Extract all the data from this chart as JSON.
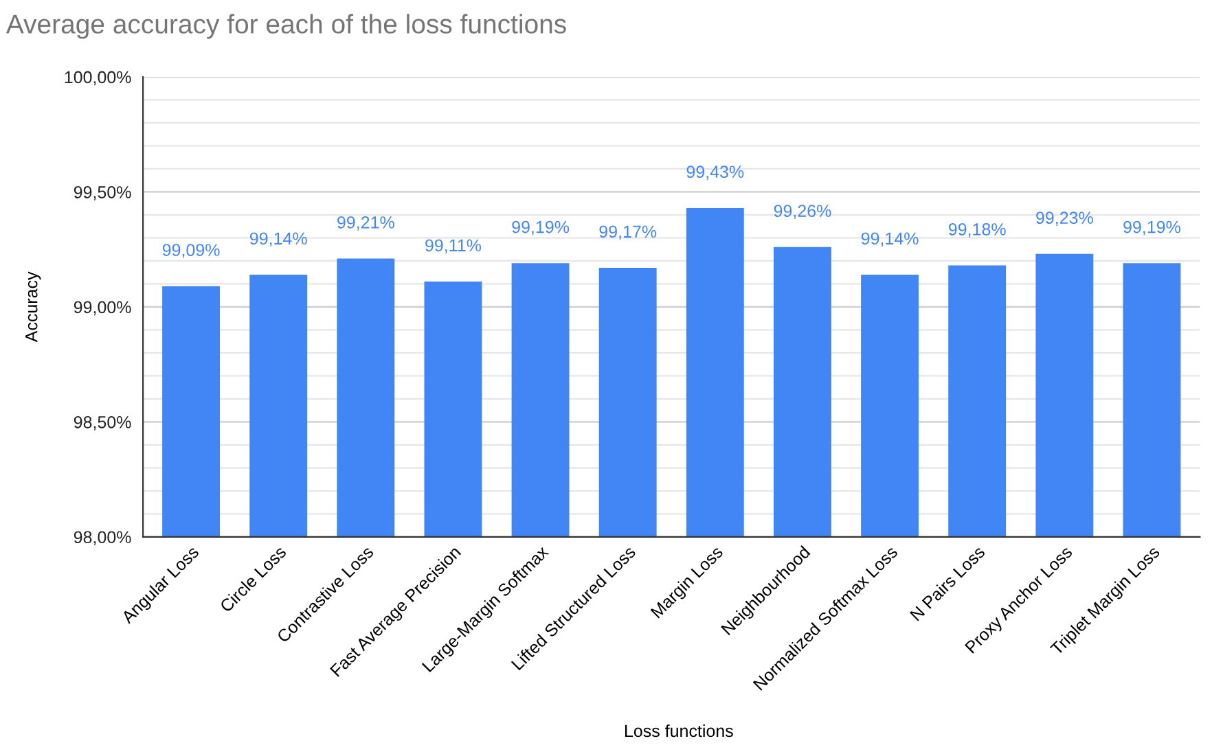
{
  "chart_data": {
    "type": "bar",
    "title": "Average accuracy for each of the loss functions",
    "xlabel": "Loss functions",
    "ylabel": "Accuracy",
    "categories": [
      "Angular Loss",
      "Circle Loss",
      "Contrastive Loss",
      "Fast Average Precision",
      "Large-Margin Softmax",
      "Lifted Structured Loss",
      "Margin Loss",
      "Neighbourhood",
      "Normalized Softmax Loss",
      "N Pairs Loss",
      "Proxy Anchor Loss",
      "Triplet Margin Loss"
    ],
    "values": [
      99.09,
      99.14,
      99.21,
      99.11,
      99.19,
      99.17,
      99.43,
      99.26,
      99.14,
      99.18,
      99.23,
      99.19
    ],
    "value_labels": [
      "99,09%",
      "99,14%",
      "99,21%",
      "99,11%",
      "99,19%",
      "99,17%",
      "99,43%",
      "99,26%",
      "99,14%",
      "99,18%",
      "99,23%",
      "99,19%"
    ],
    "color": "#4285f4",
    "ylim": [
      98.0,
      100.0
    ],
    "yticks": [
      {
        "value": 98.0,
        "label": "98,00%"
      },
      {
        "value": 98.1,
        "label": null
      },
      {
        "value": 98.2,
        "label": null
      },
      {
        "value": 98.3,
        "label": null
      },
      {
        "value": 98.4,
        "label": null
      },
      {
        "value": 98.5,
        "label": "98,50%"
      },
      {
        "value": 98.6,
        "label": null
      },
      {
        "value": 98.7,
        "label": null
      },
      {
        "value": 98.8,
        "label": null
      },
      {
        "value": 98.9,
        "label": null
      },
      {
        "value": 99.0,
        "label": "99,00%"
      },
      {
        "value": 99.1,
        "label": null
      },
      {
        "value": 99.2,
        "label": null
      },
      {
        "value": 99.3,
        "label": null
      },
      {
        "value": 99.4,
        "label": null
      },
      {
        "value": 99.5,
        "label": "99,50%"
      },
      {
        "value": 99.6,
        "label": null
      },
      {
        "value": 99.7,
        "label": null
      },
      {
        "value": 99.8,
        "label": null
      },
      {
        "value": 99.9,
        "label": null
      },
      {
        "value": 100.0,
        "label": "100,00%"
      }
    ],
    "grid": "y",
    "legend": false
  }
}
